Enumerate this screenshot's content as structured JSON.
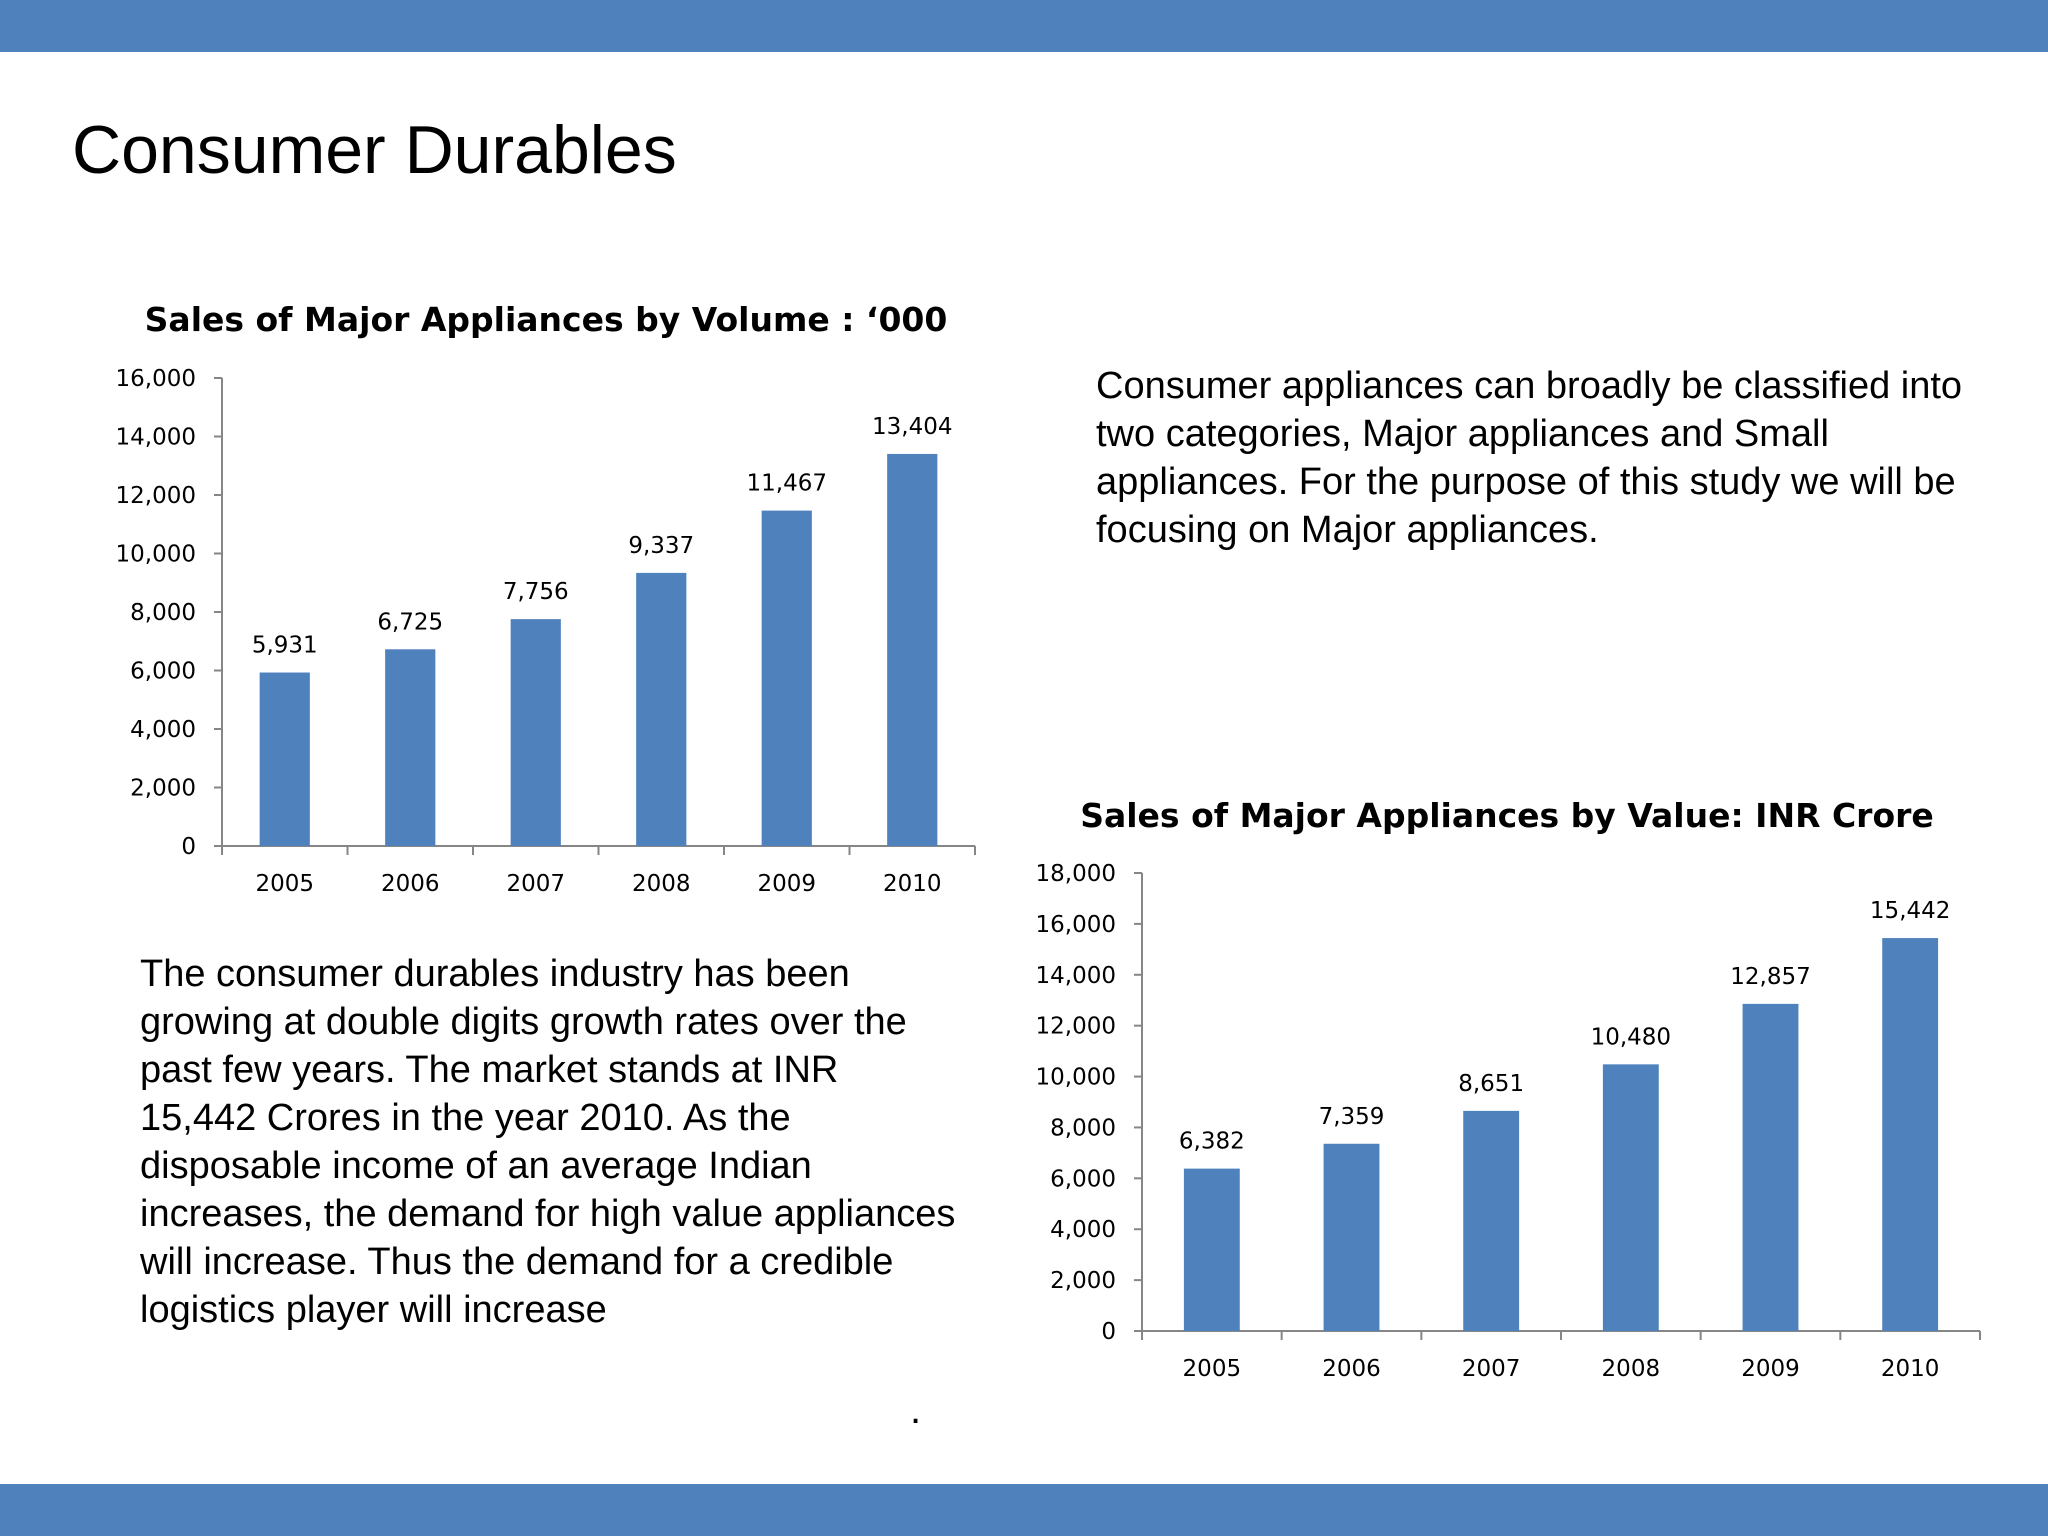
{
  "slide": {
    "title": "Consumer Durables",
    "paragraph_right": "Consumer appliances can broadly be classified into two categories, Major appliances and Small appliances. For the purpose of this study we will be focusing on Major appliances.",
    "paragraph_left": "The consumer durables industry has been growing at double digits growth rates over the past few years. The market  stands at INR 15,442 Crores in the year 2010. As the disposable income of an average Indian increases, the demand for high value appliances will increase. Thus the demand for a credible logistics player will increase",
    "footnote_mark": "."
  },
  "colors": {
    "band": "#4f81bd",
    "bar": "#4f81bd",
    "axis": "#868686"
  },
  "chart_data": [
    {
      "type": "bar",
      "title": "Sales of Major Appliances by Volume : ‘000",
      "categories": [
        "2005",
        "2006",
        "2007",
        "2008",
        "2009",
        "2010"
      ],
      "values": [
        5931,
        6725,
        7756,
        9337,
        11467,
        13404
      ],
      "data_labels": [
        "5,931",
        "6,725",
        "7,756",
        "9,337",
        "11,467",
        "13,404"
      ],
      "ylim": [
        0,
        16000
      ],
      "yticks": [
        "0",
        "2,000",
        "4,000",
        "6,000",
        "8,000",
        "10,000",
        "12,000",
        "14,000",
        "16,000"
      ],
      "grid": false,
      "legend": "none"
    },
    {
      "type": "bar",
      "title": "Sales of Major Appliances by Value: INR Crore",
      "categories": [
        "2005",
        "2006",
        "2007",
        "2008",
        "2009",
        "2010"
      ],
      "values": [
        6382,
        7359,
        8651,
        10480,
        12857,
        15442
      ],
      "data_labels": [
        "6,382",
        "7,359",
        "8,651",
        "10,480",
        "12,857",
        "15,442"
      ],
      "ylim": [
        0,
        18000
      ],
      "yticks": [
        "0",
        "2,000",
        "4,000",
        "6,000",
        "8,000",
        "10,000",
        "12,000",
        "14,000",
        "16,000",
        "18,000"
      ],
      "grid": false,
      "legend": "none"
    }
  ]
}
